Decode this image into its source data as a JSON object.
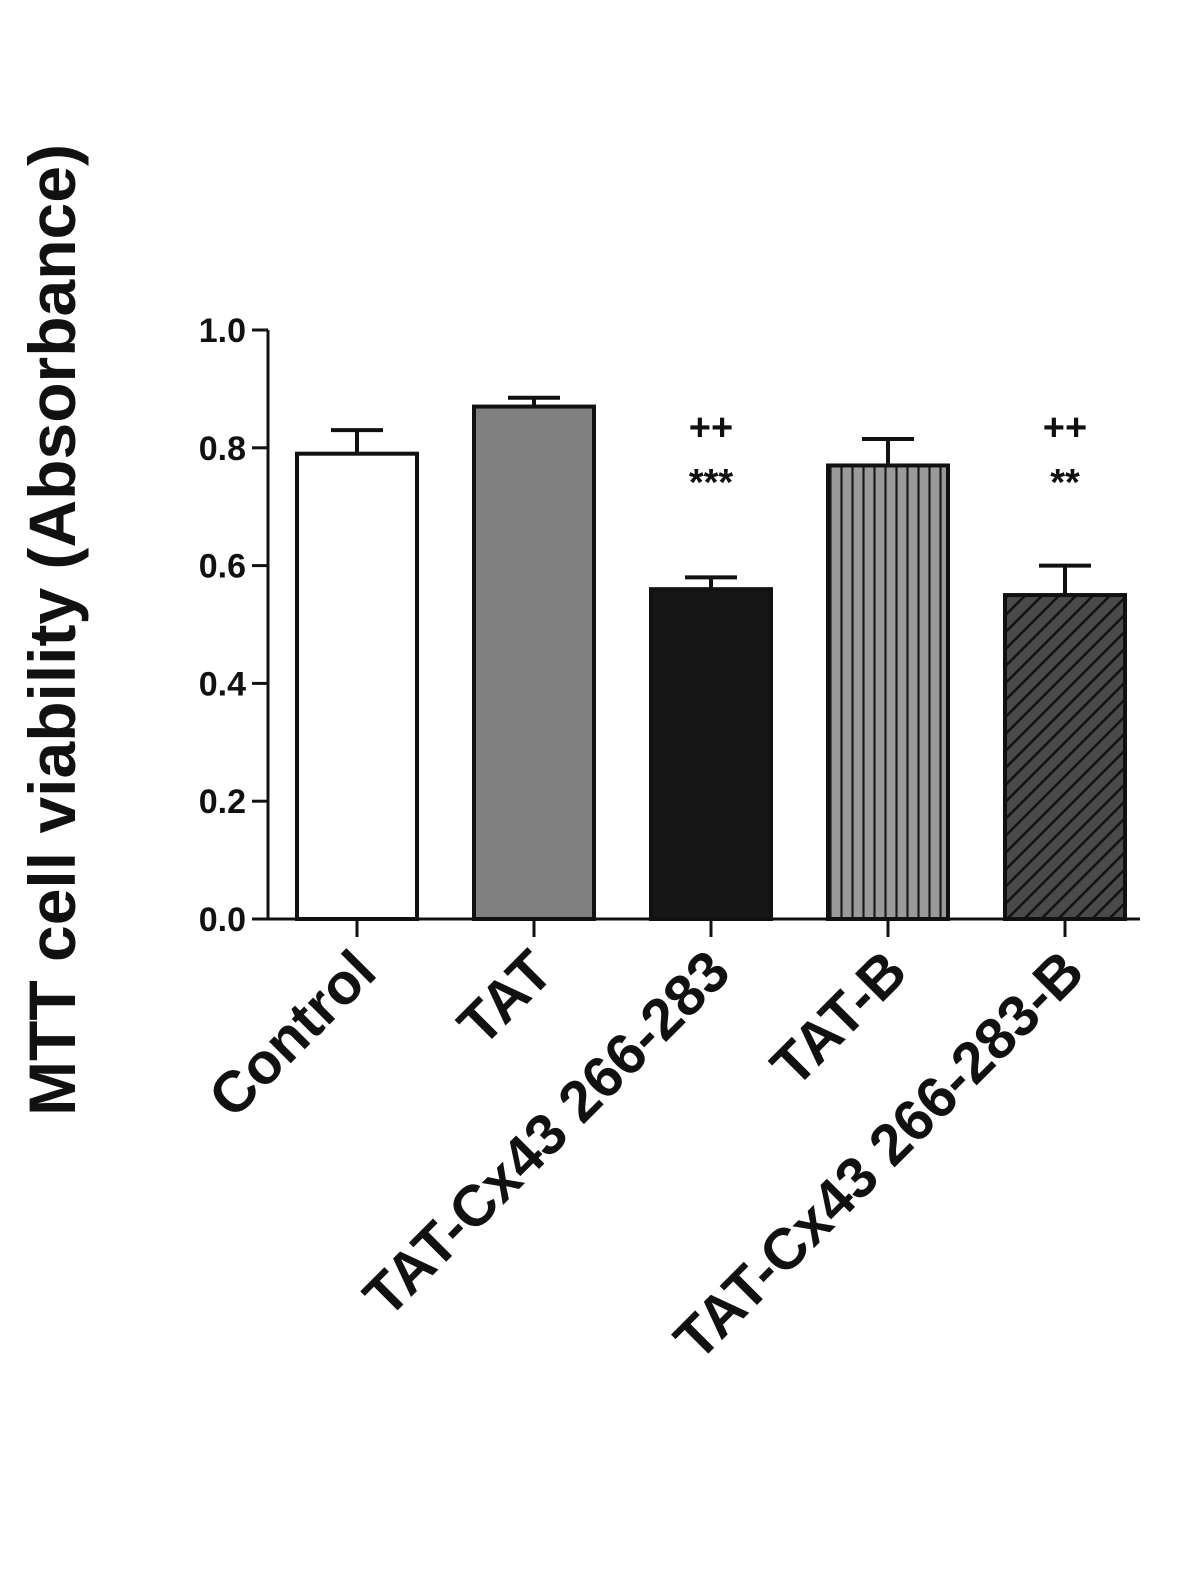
{
  "chart_data": {
    "type": "bar",
    "title": "",
    "xlabel": "",
    "ylabel": "MTT cell viability (Absorbance)",
    "ylim": [
      0,
      1.0
    ],
    "yticks": [
      "0.0",
      "0.2",
      "0.4",
      "0.6",
      "0.8",
      "1.0"
    ],
    "grid": false,
    "categories": [
      "Control",
      "TAT",
      "TAT-Cx43 266-283",
      "TAT-B",
      "TAT-Cx43 266-283-B"
    ],
    "values": [
      0.79,
      0.87,
      0.56,
      0.77,
      0.55
    ],
    "errors": [
      0.04,
      0.015,
      0.02,
      0.045,
      0.05
    ],
    "fills": [
      {
        "color": "#ffffff",
        "pattern": "none"
      },
      {
        "color": "#808080",
        "pattern": "none"
      },
      {
        "color": "#161616",
        "pattern": "none"
      },
      {
        "color": "#9a9a9a",
        "pattern": "vertical-lines"
      },
      {
        "color": "#4a4a4a",
        "pattern": "diagonal-lines"
      }
    ],
    "annotations": [
      {
        "category": "TAT-Cx43 266-283",
        "lines": [
          "++",
          "***"
        ]
      },
      {
        "category": "TAT-Cx43 266-283-B",
        "lines": [
          "++",
          "**"
        ]
      }
    ]
  }
}
